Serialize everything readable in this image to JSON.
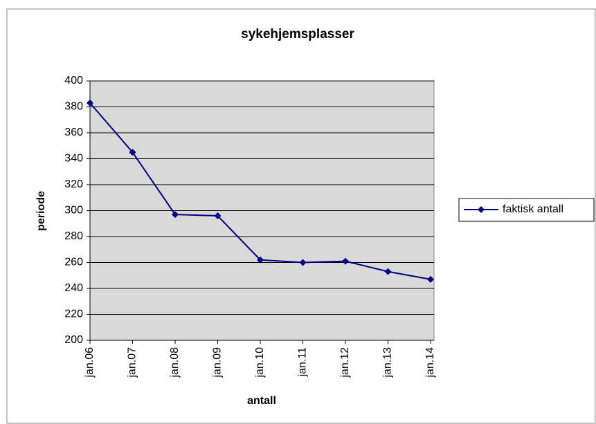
{
  "chart_data": {
    "type": "line",
    "title": "sykehjemsplasser",
    "x_label": "antall",
    "y_label": "periode",
    "categories": [
      "jan.06",
      "jan.07",
      "jan.08",
      "jan.09",
      "jan.10",
      "jan.11",
      "jan.12",
      "jan.13",
      "jan.14"
    ],
    "series": [
      {
        "name": "faktisk antall",
        "color": "#000080",
        "values": [
          383,
          345,
          297,
          296,
          262,
          260,
          261,
          253,
          247
        ]
      }
    ],
    "ylim": [
      200,
      400
    ],
    "yticks": [
      200,
      220,
      240,
      260,
      280,
      300,
      320,
      340,
      360,
      380,
      400
    ],
    "grid": true,
    "legend": "right"
  }
}
